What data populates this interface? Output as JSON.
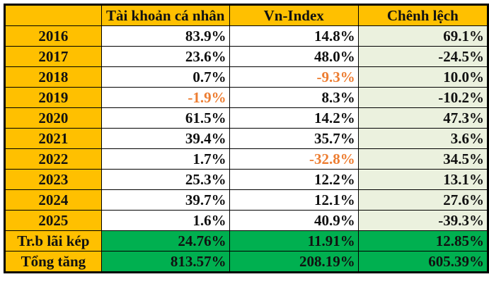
{
  "table": {
    "headers": [
      "",
      "Tài khoản cá nhân",
      "Vn-Index",
      "Chênh lệch"
    ],
    "rows": [
      {
        "label": "2016",
        "account": "83.9%",
        "vnindex": "14.8%",
        "diff": "69.1%"
      },
      {
        "label": "2017",
        "account": "23.6%",
        "vnindex": "48.0%",
        "diff": "-24.5%"
      },
      {
        "label": "2018",
        "account": "0.7%",
        "vnindex": "-9.3%",
        "diff": "10.0%"
      },
      {
        "label": "2019",
        "account": "-1.9%",
        "vnindex": "8.3%",
        "diff": "-10.2%"
      },
      {
        "label": "2020",
        "account": "61.5%",
        "vnindex": "14.2%",
        "diff": "47.3%"
      },
      {
        "label": "2021",
        "account": "39.4%",
        "vnindex": "35.7%",
        "diff": "3.6%"
      },
      {
        "label": "2022",
        "account": "1.7%",
        "vnindex": "-32.8%",
        "diff": "34.5%"
      },
      {
        "label": "2023",
        "account": "25.3%",
        "vnindex": "12.2%",
        "diff": "13.1%"
      },
      {
        "label": "2024",
        "account": "39.7%",
        "vnindex": "12.1%",
        "diff": "27.6%"
      },
      {
        "label": "2025",
        "account": "1.6%",
        "vnindex": "40.9%",
        "diff": "-39.3%"
      }
    ],
    "summary": [
      {
        "label": "Tr.b lãi kép",
        "account": "24.76%",
        "vnindex": "11.91%",
        "diff": "12.85%"
      },
      {
        "label": "Tổng tăng",
        "account": "813.57%",
        "vnindex": "208.19%",
        "diff": "605.39%"
      }
    ]
  },
  "colors": {
    "header_bg": "#FFC000",
    "diff_bg": "#EBF1DE",
    "summary_bg": "#00B050",
    "negative_text": "#ED7D31"
  }
}
